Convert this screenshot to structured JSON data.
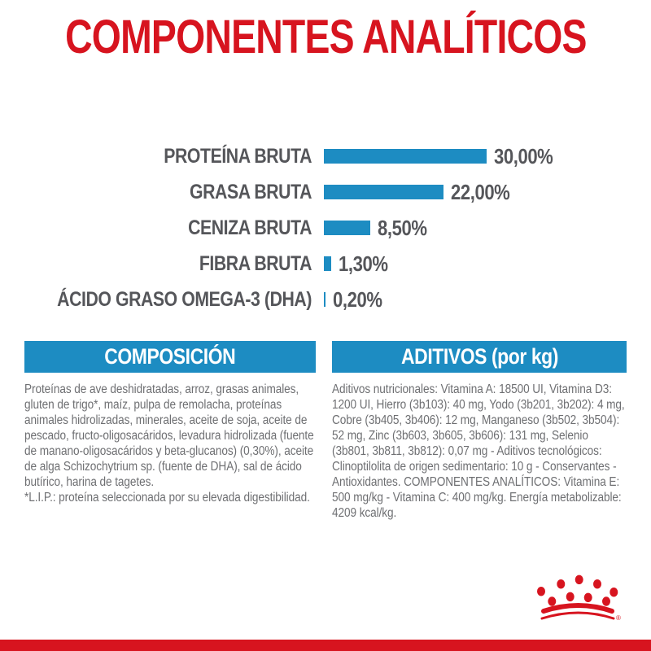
{
  "title": "COMPONENTES ANALÍTICOS",
  "chart_data": {
    "type": "bar",
    "orientation": "horizontal",
    "categories": [
      "PROTEÍNA BRUTA",
      "GRASA BRUTA",
      "CENIZA BRUTA",
      "FIBRA BRUTA",
      "ÁCIDO GRASO OMEGA-3 (DHA)"
    ],
    "values": [
      30.0,
      22.0,
      8.5,
      1.3,
      0.2
    ],
    "value_labels": [
      "30,00%",
      "22,00%",
      "8,50%",
      "1,30%",
      "0,20%"
    ],
    "unit": "%",
    "xlim": [
      0,
      30
    ],
    "bar_color": "#1d8cc2",
    "grid": false,
    "legend": false
  },
  "sections": {
    "composition": {
      "header": "COMPOSICIÓN",
      "body": "Proteínas de ave deshidratadas, arroz, grasas animales, gluten de trigo*, maíz, pulpa de remolacha, proteínas animales hidrolizadas, minerales, aceite de soja, aceite de pescado, fructo-oligosacáridos, levadura hidrolizada (fuente de manano-oligosacáridos y beta-glucanos) (0,30%), aceite de alga Schizochytrium sp. (fuente de DHA), sal de ácido butírico, harina de tagetes.",
      "footnote": "*L.I.P.: proteína seleccionada por su elevada digestibilidad."
    },
    "additives": {
      "header": "ADITIVOS (por kg)",
      "body": "Aditivos nutricionales: Vitamina A: 18500 UI, Vitamina D3: 1200 UI, Hierro (3b103): 40 mg, Yodo (3b201, 3b202): 4 mg, Cobre (3b405, 3b406): 12 mg, Manganeso (3b502, 3b504): 52 mg, Zinc (3b603, 3b605, 3b606): 131 mg, Selenio (3b801, 3b811, 3b812): 0,07 mg - Aditivos tecnológicos: Clinoptilolita de origen sedimentario: 10 g - Conservantes - Antioxidantes. COMPONENTES ANALÍTICOS: Vitamina E: 500 mg/kg - Vitamina C: 400 mg/kg. Energía metabolizable: 4209 kcal/kg."
    }
  },
  "footer": {
    "logo": "royal-canin-crown",
    "registered_mark": "®"
  },
  "colors": {
    "brand_red": "#d7141f",
    "bar_blue": "#1d8cc2",
    "header_blue": "#1d8cc2",
    "label_gray": "#55565a",
    "body_gray": "#6e6f72"
  }
}
